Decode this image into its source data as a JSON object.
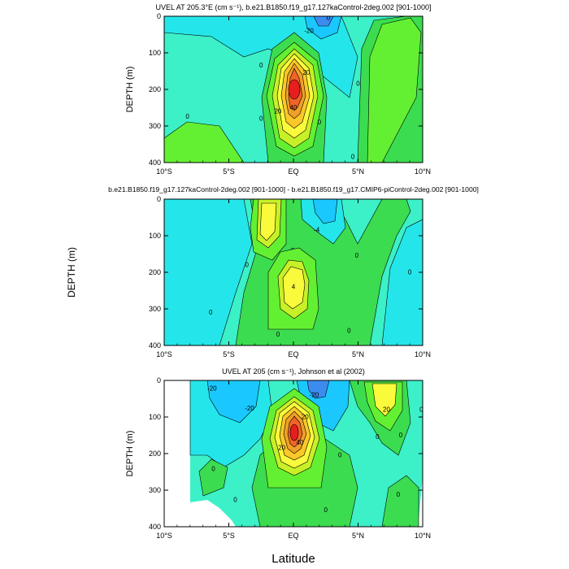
{
  "figure": {
    "xlabel": "Latitude",
    "shared_ylabel": "DEPTH (m)"
  },
  "chart_data": [
    {
      "type": "contour",
      "title": "UVEL AT 205.3°E (cm s⁻¹), b.e21.B1850.f19_g17.127kaControl-2deg.002 [901-1000]",
      "ylabel": "DEPTH (m)",
      "xlim": [
        -10,
        10
      ],
      "ylim": [
        400,
        0
      ],
      "xticks": [
        "10°S",
        "5°S",
        "EQ",
        "5°N",
        "10°N"
      ],
      "yticks": [
        0,
        100,
        200,
        300,
        400
      ],
      "background_color": "#3cf0c8",
      "contour_labels": [
        {
          "text": "-20",
          "lat": 1.2,
          "depth": 45
        },
        {
          "text": "0",
          "lat": 2.7,
          "depth": 10
        },
        {
          "text": "0",
          "lat": -2.5,
          "depth": 140
        },
        {
          "text": "0",
          "lat": 5.0,
          "depth": 190
        },
        {
          "text": "0",
          "lat": -2.5,
          "depth": 285
        },
        {
          "text": "0",
          "lat": 2.0,
          "depth": 295
        },
        {
          "text": "0",
          "lat": 4.6,
          "depth": 390
        },
        {
          "text": "0",
          "lat": -8.2,
          "depth": 280
        },
        {
          "text": "20",
          "lat": -1.2,
          "depth": 265
        },
        {
          "text": "20",
          "lat": 1.0,
          "depth": 160
        },
        {
          "text": "40",
          "lat": 0.0,
          "depth": 255
        }
      ]
    },
    {
      "type": "contour",
      "title": "b.e21.B1850.f19_g17.127kaControl-2deg.002 [901-1000] - b.e21.B1850.f19_g17.CMIP6-piControl-2deg.002 [901-1000]",
      "ylabel": "DEPTH (m)",
      "xlim": [
        -10,
        10
      ],
      "ylim": [
        400,
        0
      ],
      "xticks": [
        "10°S",
        "5°S",
        "EQ",
        "5°N",
        "10°N"
      ],
      "yticks": [
        0,
        100,
        200,
        300,
        400
      ],
      "background_color": "#3cf0c8",
      "contour_labels": [
        {
          "text": "-4",
          "lat": 1.8,
          "depth": 90
        },
        {
          "text": "4",
          "lat": 0.0,
          "depth": 245
        },
        {
          "text": "0",
          "lat": -3.6,
          "depth": 185
        },
        {
          "text": "0",
          "lat": 4.9,
          "depth": 160
        },
        {
          "text": "0",
          "lat": 9.0,
          "depth": 205
        },
        {
          "text": "0",
          "lat": -6.4,
          "depth": 315
        },
        {
          "text": "0",
          "lat": -1.2,
          "depth": 375
        },
        {
          "text": "0",
          "lat": 4.3,
          "depth": 365
        }
      ]
    },
    {
      "type": "contour",
      "title": "UVEL AT 205 (cm s⁻¹), Johnson et al (2002)",
      "ylabel": "DEPTH (m)",
      "xlim": [
        -10,
        10
      ],
      "ylim": [
        400,
        0
      ],
      "xticks": [
        "10°S",
        "5°S",
        "EQ",
        "5°N",
        "10°N"
      ],
      "yticks": [
        0,
        100,
        200,
        300,
        400
      ],
      "background_color": "#3cf0c8",
      "contour_labels": [
        {
          "text": "-20",
          "lat": -6.3,
          "depth": 28
        },
        {
          "text": "-20",
          "lat": -3.4,
          "depth": 82
        },
        {
          "text": "-20",
          "lat": 1.6,
          "depth": 45
        },
        {
          "text": "20",
          "lat": 0.9,
          "depth": 105
        },
        {
          "text": "20",
          "lat": -0.9,
          "depth": 190
        },
        {
          "text": "40",
          "lat": 0.5,
          "depth": 175
        },
        {
          "text": "20",
          "lat": 7.2,
          "depth": 85
        },
        {
          "text": "0",
          "lat": 9.9,
          "depth": 85
        },
        {
          "text": "0",
          "lat": 3.6,
          "depth": 210
        },
        {
          "text": "0",
          "lat": 6.5,
          "depth": 160
        },
        {
          "text": "0",
          "lat": 8.3,
          "depth": 155
        },
        {
          "text": "0",
          "lat": -6.2,
          "depth": 248
        },
        {
          "text": "0",
          "lat": -4.5,
          "depth": 332
        },
        {
          "text": "0",
          "lat": 8.1,
          "depth": 318
        },
        {
          "text": "0",
          "lat": 2.5,
          "depth": 360
        }
      ]
    }
  ]
}
